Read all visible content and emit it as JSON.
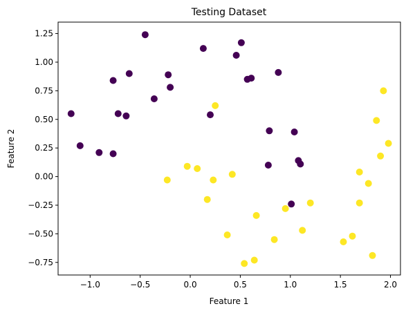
{
  "chart_data": {
    "type": "scatter",
    "title": "Testing Dataset",
    "xlabel": "Feature 1",
    "ylabel": "Feature 2",
    "xlim": [
      -1.32,
      2.1
    ],
    "ylim": [
      -0.86,
      1.35
    ],
    "xticks": [
      -1.0,
      -0.5,
      0.0,
      0.5,
      1.0,
      1.5,
      2.0
    ],
    "xtick_labels": [
      "−1.0",
      "−0.5",
      "0.0",
      "0.5",
      "1.0",
      "1.5",
      "2.0"
    ],
    "yticks": [
      -0.75,
      -0.5,
      -0.25,
      0.0,
      0.25,
      0.5,
      0.75,
      1.0,
      1.25
    ],
    "ytick_labels": [
      "−0.75",
      "−0.50",
      "−0.25",
      "0.00",
      "0.25",
      "0.50",
      "0.75",
      "1.00",
      "1.25"
    ],
    "grid": false,
    "legend": "none",
    "colors": {
      "class_0": "#440154",
      "class_1": "#fde725"
    },
    "series": [
      {
        "class": 0,
        "points": [
          [
            -1.19,
            0.55
          ],
          [
            -1.1,
            0.27
          ],
          [
            -0.91,
            0.21
          ],
          [
            -0.77,
            0.2
          ],
          [
            -0.77,
            0.84
          ],
          [
            -0.72,
            0.55
          ],
          [
            -0.64,
            0.53
          ],
          [
            -0.61,
            0.9
          ],
          [
            -0.45,
            1.24
          ],
          [
            -0.36,
            0.68
          ],
          [
            -0.22,
            0.89
          ],
          [
            -0.2,
            0.78
          ],
          [
            0.13,
            1.12
          ],
          [
            0.2,
            0.54
          ],
          [
            0.46,
            1.06
          ],
          [
            0.51,
            1.17
          ],
          [
            0.57,
            0.85
          ],
          [
            0.61,
            0.86
          ],
          [
            0.78,
            0.1
          ],
          [
            0.79,
            0.4
          ],
          [
            0.88,
            0.91
          ],
          [
            1.01,
            -0.24
          ],
          [
            1.04,
            0.39
          ],
          [
            1.08,
            0.14
          ],
          [
            1.1,
            0.11
          ]
        ]
      },
      {
        "class": 1,
        "points": [
          [
            -0.23,
            -0.03
          ],
          [
            -0.03,
            0.09
          ],
          [
            0.07,
            0.07
          ],
          [
            0.17,
            -0.2
          ],
          [
            0.23,
            -0.03
          ],
          [
            0.25,
            0.62
          ],
          [
            0.37,
            -0.51
          ],
          [
            0.42,
            0.02
          ],
          [
            0.54,
            -0.76
          ],
          [
            0.64,
            -0.73
          ],
          [
            0.66,
            -0.34
          ],
          [
            0.84,
            -0.55
          ],
          [
            0.95,
            -0.28
          ],
          [
            1.12,
            -0.47
          ],
          [
            1.2,
            -0.23
          ],
          [
            1.53,
            -0.57
          ],
          [
            1.62,
            -0.52
          ],
          [
            1.69,
            0.04
          ],
          [
            1.69,
            -0.23
          ],
          [
            1.78,
            -0.06
          ],
          [
            1.82,
            -0.69
          ],
          [
            1.86,
            0.49
          ],
          [
            1.9,
            0.18
          ],
          [
            1.93,
            0.75
          ],
          [
            1.98,
            0.29
          ]
        ]
      }
    ]
  }
}
